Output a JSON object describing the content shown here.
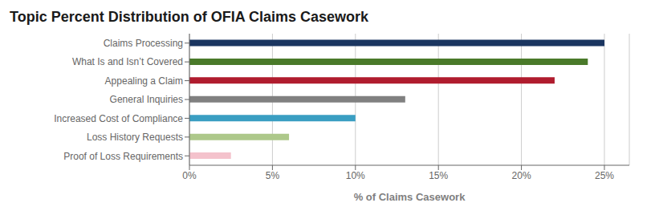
{
  "chart_data": {
    "type": "bar",
    "title": "Topic Percent Distribution of OFIA Claims Casework",
    "xlabel": "% of Claims Casework",
    "orientation": "horizontal",
    "categories": [
      "Proof of Loss Requirements",
      "Loss History Requests",
      "Increased Cost of Compliance",
      "General Inquiries",
      "Appealing a Claim",
      "What Is and Isn’t Covered",
      "Claims Processing"
    ],
    "values": [
      2.5,
      6.0,
      10.0,
      13.0,
      22.0,
      24.0,
      25.0
    ],
    "colors": [
      "#f4c2cc",
      "#adc88a",
      "#3a9ec2",
      "#808080",
      "#b01c2e",
      "#4a7a2a",
      "#1a3560"
    ],
    "xlim": [
      0,
      26.5
    ],
    "xticks": [
      {
        "value": 0,
        "label": "0%"
      },
      {
        "value": 5,
        "label": "5%"
      },
      {
        "value": 10,
        "label": "10%"
      },
      {
        "value": 15,
        "label": "15%"
      },
      {
        "value": 20,
        "label": "20%"
      },
      {
        "value": 25,
        "label": "25%"
      }
    ],
    "grid": true
  }
}
